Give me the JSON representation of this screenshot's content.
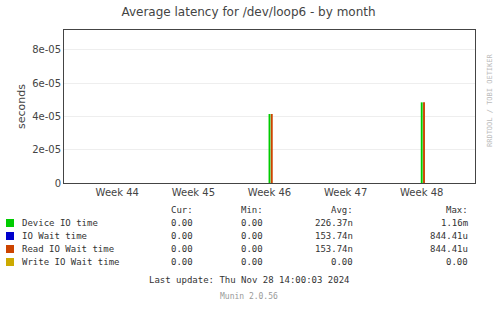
{
  "chart_data": {
    "type": "bar",
    "title": "Average latency for /dev/loop6 - by month",
    "ylabel": "seconds",
    "xlim": [
      43.3,
      48.7
    ],
    "xticks": [
      {
        "value": 44,
        "label": "Week 44"
      },
      {
        "value": 45,
        "label": "Week 45"
      },
      {
        "value": 46,
        "label": "Week 46"
      },
      {
        "value": 47,
        "label": "Week 47"
      },
      {
        "value": 48,
        "label": "Week 48"
      }
    ],
    "ylim": [
      0,
      9.2e-05
    ],
    "yticks": [
      0,
      {
        "value": 2e-05,
        "label": "2e-05"
      },
      {
        "value": 4e-05,
        "label": "4e-05"
      },
      {
        "value": 6e-05,
        "label": "6e-05"
      },
      {
        "value": 8e-05,
        "label": "8e-05"
      }
    ],
    "grid": true,
    "series": [
      {
        "name": "Device IO time",
        "color": "#00cc00",
        "x": [
          46.0,
          48.0
        ],
        "values": [
          4.15e-05,
          4.85e-05
        ],
        "stats": [
          "0.00",
          "0.00",
          "226.37n",
          "1.16m"
        ]
      },
      {
        "name": "IO Wait time",
        "color": "#0000cc",
        "x": [],
        "values": [],
        "stats": [
          "0.00",
          "0.00",
          "153.74n",
          "844.41u"
        ]
      },
      {
        "name": "Read IO Wait time",
        "color": "#cc4400",
        "x": [
          46.03,
          48.03
        ],
        "values": [
          4.15e-05,
          4.85e-05
        ],
        "stats": [
          "0.00",
          "0.00",
          "153.74n",
          "844.41u"
        ]
      },
      {
        "name": "Write IO Wait time",
        "color": "#ccaa00",
        "x": [],
        "values": [],
        "stats": [
          "0.00",
          "0.00",
          "0.00",
          "0.00"
        ]
      }
    ],
    "stats_headers": [
      "Cur:",
      "Min:",
      "Avg:",
      "Max:"
    ],
    "annotations": [
      "Last update: Thu Nov 28 14:00:03 2024",
      "Munin 2.0.56",
      "RRDTOOL / TOBI OETIKER"
    ]
  }
}
